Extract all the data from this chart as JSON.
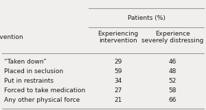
{
  "title": "Patients (%)",
  "col1_header": "Intervention",
  "col2_header": "Experiencing\nintervention",
  "col3_header": "Experience\nseverely distressing",
  "rows": [
    [
      "“Taken down”",
      "29",
      "46"
    ],
    [
      "Placed in seclusion",
      "59",
      "48"
    ],
    [
      "Put in restraints",
      "34",
      "52"
    ],
    [
      "Forced to take medication",
      "27",
      "58"
    ],
    [
      "Any other physical force",
      "21",
      "66"
    ]
  ],
  "background_color": "#f0efed",
  "text_color": "#1a1a1a",
  "line_color": "#999999",
  "font_size": 6.5
}
